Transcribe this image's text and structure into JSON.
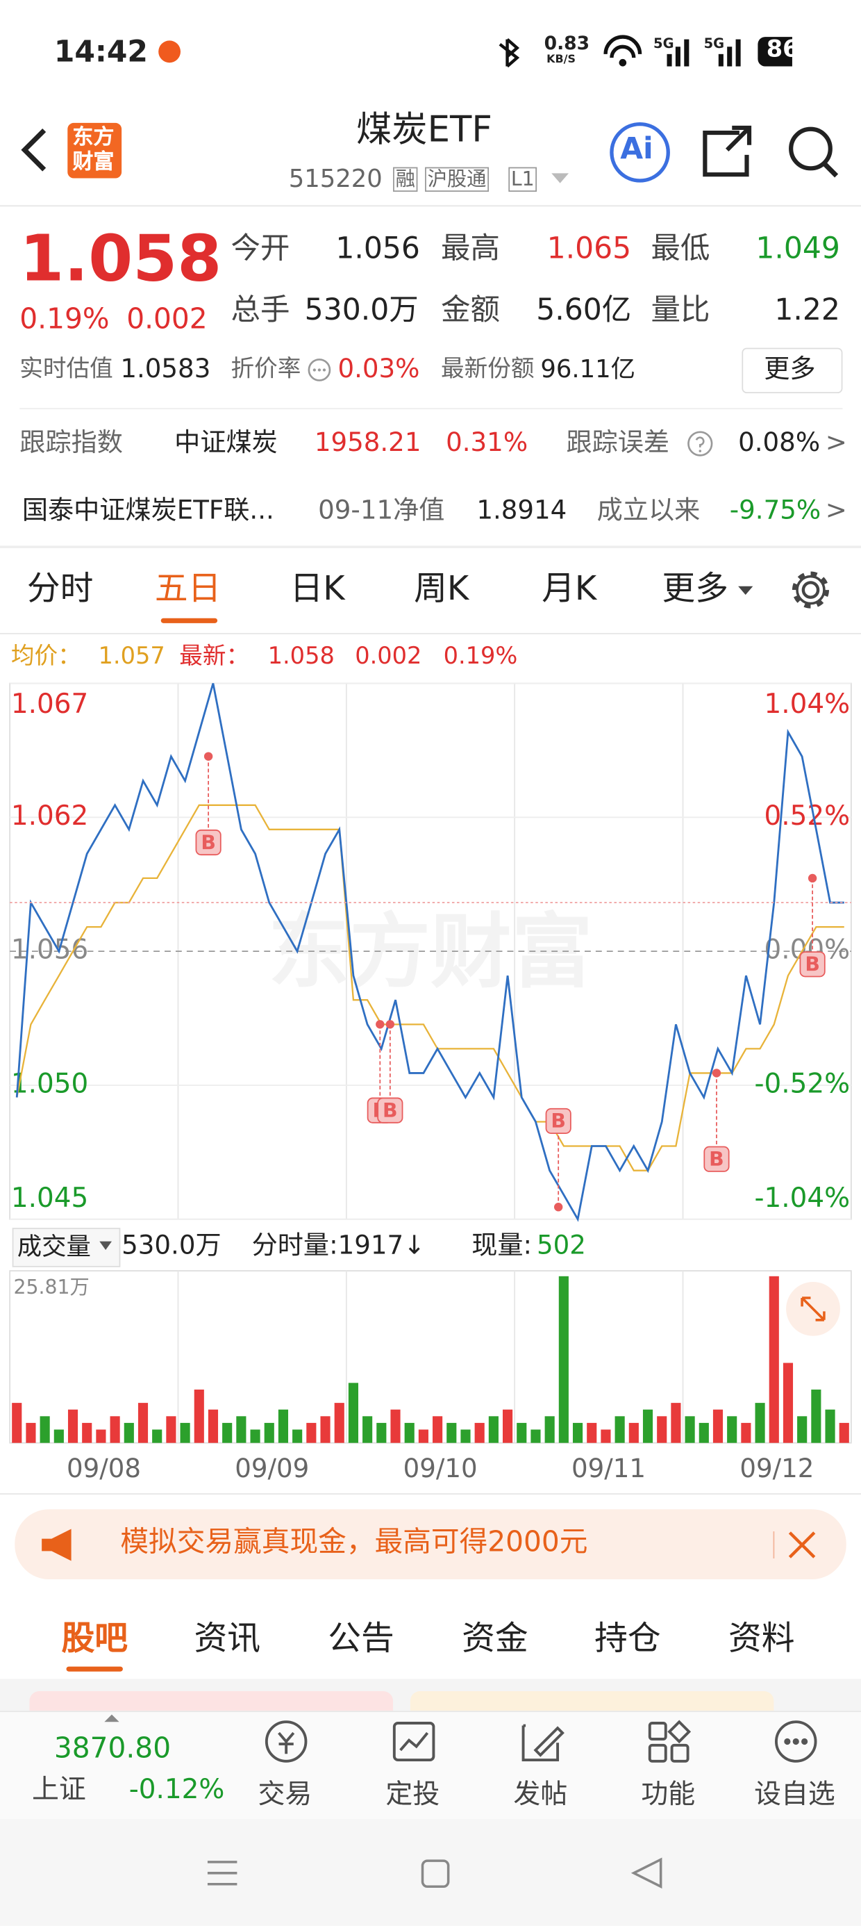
{
  "status": {
    "time": "14:42",
    "speed": "0.83",
    "speed_unit": "KB/S",
    "net1": "5G",
    "net2": "5G",
    "battery": "86"
  },
  "header": {
    "logo": [
      "东方",
      "财富"
    ],
    "title": "煤炭ETF",
    "code": "515220",
    "tags": [
      "融",
      "沪股通",
      "L1"
    ],
    "ai": "Ai"
  },
  "quote": {
    "price": "1.058",
    "change_pct": "0.19%",
    "change": "0.002",
    "stats": [
      {
        "label": "今开",
        "value": "1.056"
      },
      {
        "label": "最高",
        "value": "1.065"
      },
      {
        "label": "最低",
        "value": "1.049"
      },
      {
        "label": "总手",
        "value": "530.0万"
      },
      {
        "label": "金额",
        "value": "5.60亿"
      },
      {
        "label": "量比",
        "value": "1.22"
      }
    ],
    "estimate_label": "实时估值",
    "estimate": "1.0583",
    "discount_label": "折价率",
    "discount": "0.03%",
    "shares_label": "最新份额",
    "shares": "96.11亿",
    "more": "更多"
  },
  "tracking": {
    "label": "跟踪指数",
    "index": "中证煤炭",
    "index_value": "1958.21",
    "index_change": "0.31%",
    "error_label": "跟踪误差",
    "error": "0.08%",
    "arrow": ">"
  },
  "fund": {
    "name": "国泰中证煤炭ETF联...",
    "nav_label": "09-11净值",
    "nav": "1.8914",
    "since_label": "成立以来",
    "since": "-9.75%",
    "arrow": ">"
  },
  "tabs": [
    "分时",
    "五日",
    "日K",
    "周K",
    "月K",
    "更多"
  ],
  "chart_data": {
    "type": "line",
    "watermark": "东方财富",
    "legend": {
      "avg_label": "均价：",
      "avg": "1.057",
      "last_label": "最新：",
      "last": "1.058",
      "change": "0.002",
      "change_pct": "0.19%"
    },
    "xlim": [
      0,
      5
    ],
    "xticks": [
      {
        "value": 0.5,
        "label": "09/08"
      },
      {
        "value": 1.5,
        "label": "09/09"
      },
      {
        "value": 2.5,
        "label": "09/10"
      },
      {
        "value": 3.5,
        "label": "09/11"
      },
      {
        "value": 4.5,
        "label": "09/12"
      }
    ],
    "ylim": [
      1.045,
      1.067
    ],
    "yticks": [
      1.067,
      {
        "value": 1.0615,
        "label": "1.062"
      },
      1.056,
      {
        "value": 1.0505,
        "label": "1.050"
      },
      1.045
    ],
    "y2lim": [
      -1.04,
      1.04
    ],
    "y2ticks": [
      {
        "value": 1.04,
        "label": "1.04%"
      },
      {
        "value": 0.52,
        "label": "0.52%"
      },
      {
        "value": 0,
        "label": "0.00%"
      },
      {
        "value": -0.52,
        "label": "-0.52%"
      },
      {
        "value": -1.04,
        "label": "-1.04%"
      }
    ],
    "grid": true,
    "series": [
      {
        "color": "#2f6fc2",
        "values": [
          1.05,
          1.058,
          1.057,
          1.056,
          1.058,
          1.06,
          1.061,
          1.062,
          1.061,
          1.063,
          1.062,
          1.064,
          1.063,
          1.065,
          1.067,
          1.064,
          1.061,
          1.06,
          1.058,
          1.057,
          1.056,
          1.058,
          1.06,
          1.061,
          1.055,
          1.053,
          1.052,
          1.054,
          1.051,
          1.051,
          1.052,
          1.051,
          1.05,
          1.051,
          1.05,
          1.055,
          1.05,
          1.049,
          1.047,
          1.046,
          1.045,
          1.048,
          1.048,
          1.047,
          1.048,
          1.047,
          1.049,
          1.053,
          1.051,
          1.05,
          1.052,
          1.051,
          1.055,
          1.053,
          1.058,
          1.065,
          1.064,
          1.061,
          1.058,
          1.058
        ]
      },
      {
        "color": "#e8b339",
        "values": [
          1.05,
          1.053,
          1.054,
          1.055,
          1.056,
          1.057,
          1.057,
          1.058,
          1.058,
          1.059,
          1.059,
          1.06,
          1.061,
          1.062,
          1.062,
          1.062,
          1.062,
          1.062,
          1.061,
          1.061,
          1.061,
          1.061,
          1.061,
          1.061,
          1.054,
          1.054,
          1.053,
          1.053,
          1.053,
          1.053,
          1.052,
          1.052,
          1.052,
          1.052,
          1.052,
          1.051,
          1.05,
          1.049,
          1.049,
          1.048,
          1.048,
          1.048,
          1.048,
          1.048,
          1.047,
          1.047,
          1.048,
          1.048,
          1.051,
          1.051,
          1.051,
          1.051,
          1.052,
          1.052,
          1.053,
          1.055,
          1.056,
          1.057,
          1.057,
          1.057
        ]
      }
    ],
    "markers": [
      {
        "label": "B",
        "x": 1.18,
        "y": 1.064
      },
      {
        "label": "B",
        "x": 2.2,
        "y": 1.053
      },
      {
        "label": "B",
        "x": 2.26,
        "y": 1.053
      },
      {
        "label": "B",
        "x": 3.26,
        "y": 1.0455
      },
      {
        "label": "B",
        "x": 4.2,
        "y": 1.051
      },
      {
        "label": "B",
        "x": 4.77,
        "y": 1.059
      }
    ],
    "volume": {
      "label": "成交量",
      "total": "530.0万",
      "minute_label": "分时量:1917↓",
      "now_label": "现量:",
      "now": "502",
      "ylim": [
        0,
        25.81
      ],
      "yticks": [
        {
          "value": 25.81,
          "label": "25.81万"
        }
      ],
      "values": [
        6,
        3,
        4,
        2,
        5,
        3,
        2,
        4,
        3,
        6,
        2,
        4,
        3,
        8,
        5,
        3,
        4,
        2,
        3,
        5,
        2,
        3,
        4,
        6,
        9,
        4,
        3,
        5,
        3,
        2,
        4,
        3,
        2,
        3,
        4,
        5,
        3,
        2,
        4,
        25,
        3,
        3,
        2,
        4,
        3,
        5,
        4,
        6,
        4,
        3,
        5,
        4,
        3,
        6,
        25,
        12,
        4,
        8,
        5,
        3
      ],
      "up_color": "#e83a3a",
      "down_color": "#2ca02c"
    }
  },
  "banner": {
    "text": "模拟交易赢真现金，最高可得2000元"
  },
  "sections": [
    "股吧",
    "资讯",
    "公告",
    "资金",
    "持仓",
    "资料"
  ],
  "bottom": {
    "index_value": "3870.80",
    "index_name": "上证",
    "index_change": "-0.12%",
    "items": [
      "交易",
      "定投",
      "发帖",
      "功能",
      "设自选"
    ]
  }
}
